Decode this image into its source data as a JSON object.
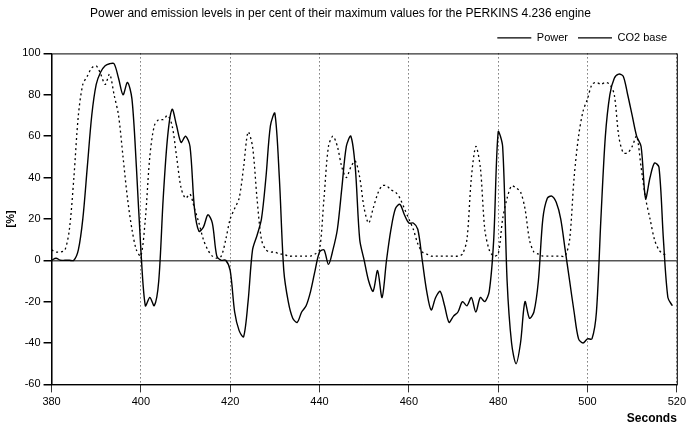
{
  "chart_data": {
    "type": "line",
    "title": "Power and emission levels in per cent of their maximum values for the PERKINS 4.236 engine",
    "x_label": "Seconds",
    "y_label": "[%]",
    "x": [
      380,
      381,
      382,
      383,
      384,
      385,
      386,
      387,
      388,
      389,
      390,
      391,
      392,
      393,
      394,
      395,
      396,
      397,
      398,
      399,
      400,
      401,
      402,
      403,
      404,
      405,
      406,
      407,
      408,
      409,
      410,
      411,
      412,
      413,
      414,
      415,
      416,
      417,
      418,
      419,
      420,
      421,
      422,
      423,
      424,
      425,
      426,
      427,
      428,
      429,
      430,
      431,
      432,
      433,
      434,
      435,
      436,
      437,
      438,
      439,
      440,
      441,
      442,
      443,
      444,
      445,
      446,
      447,
      448,
      449,
      450,
      451,
      452,
      453,
      454,
      455,
      456,
      457,
      458,
      459,
      460,
      461,
      462,
      463,
      464,
      465,
      466,
      467,
      468,
      469,
      470,
      471,
      472,
      473,
      474,
      475,
      476,
      477,
      478,
      479,
      480,
      481,
      482,
      483,
      484,
      485,
      486,
      487,
      488,
      489,
      490,
      491,
      492,
      493,
      494,
      495,
      496,
      497,
      498,
      499,
      500,
      501,
      502,
      503,
      504,
      505,
      506,
      507,
      508,
      509,
      510,
      511,
      512,
      513,
      514,
      515,
      516,
      517,
      518,
      519
    ],
    "series": [
      {
        "name": "Power",
        "color": "#000000",
        "line_style": "solid",
        "marker": "none",
        "values": [
          0,
          1,
          0,
          0,
          0,
          0,
          5,
          20,
          45,
          70,
          85,
          91,
          94,
          95,
          95,
          88,
          80,
          86,
          78,
          45,
          5,
          -22,
          -18,
          -22,
          -10,
          30,
          60,
          73,
          65,
          57,
          60,
          55,
          25,
          14,
          16,
          22,
          18,
          2,
          0,
          0,
          -5,
          -25,
          -34,
          -37,
          -20,
          5,
          12,
          20,
          40,
          65,
          71,
          40,
          -5,
          -20,
          -28,
          -30,
          -25,
          -22,
          -15,
          -5,
          4,
          5,
          -2,
          5,
          15,
          35,
          55,
          60,
          45,
          10,
          0,
          -10,
          -15,
          -5,
          -18,
          0,
          15,
          25,
          27,
          22,
          18,
          18,
          15,
          0,
          -15,
          -24,
          -18,
          -15,
          -22,
          -30,
          -27,
          -25,
          -20,
          -22,
          -18,
          -25,
          -18,
          -20,
          -15,
          10,
          62,
          55,
          -10,
          -40,
          -50,
          -40,
          -20,
          -28,
          -25,
          -10,
          20,
          30,
          31,
          28,
          20,
          5,
          -10,
          -25,
          -38,
          -40,
          -38,
          -38,
          -25,
          20,
          60,
          80,
          88,
          90,
          89,
          80,
          70,
          60,
          55,
          30,
          40,
          47,
          45,
          10,
          -18,
          -22
        ]
      },
      {
        "name": "CO2 base",
        "color": "#000000",
        "line_style": "dotted",
        "marker": "none",
        "values": [
          5,
          4,
          4,
          5,
          15,
          40,
          70,
          85,
          89,
          93,
          94,
          90,
          85,
          90,
          80,
          70,
          50,
          30,
          15,
          5,
          2,
          20,
          50,
          65,
          68,
          68,
          70,
          65,
          50,
          35,
          30,
          32,
          25,
          18,
          10,
          5,
          2,
          1,
          2,
          10,
          20,
          25,
          30,
          45,
          62,
          55,
          30,
          10,
          5,
          4,
          4,
          3,
          3,
          2,
          2,
          2,
          2,
          2,
          2,
          3,
          5,
          30,
          55,
          60,
          55,
          45,
          40,
          45,
          48,
          40,
          25,
          18,
          25,
          32,
          36,
          36,
          34,
          33,
          30,
          25,
          20,
          15,
          8,
          4,
          3,
          2,
          2,
          2,
          2,
          2,
          2,
          2,
          3,
          10,
          40,
          55,
          45,
          15,
          5,
          2,
          3,
          20,
          30,
          36,
          35,
          33,
          25,
          10,
          4,
          3,
          2,
          2,
          2,
          2,
          2,
          2,
          10,
          40,
          60,
          72,
          78,
          85,
          86,
          85,
          86,
          85,
          80,
          60,
          52,
          52,
          55,
          60,
          45,
          30,
          20,
          10,
          5,
          3,
          3,
          null
        ]
      }
    ],
    "xlim": [
      380,
      520
    ],
    "xticks": [
      380,
      400,
      420,
      440,
      460,
      480,
      500,
      520
    ],
    "ylim": [
      -60,
      100
    ],
    "yticks": [
      -60,
      -40,
      -20,
      0,
      20,
      40,
      60,
      80,
      100
    ],
    "grid": true,
    "legend": "top-right"
  }
}
